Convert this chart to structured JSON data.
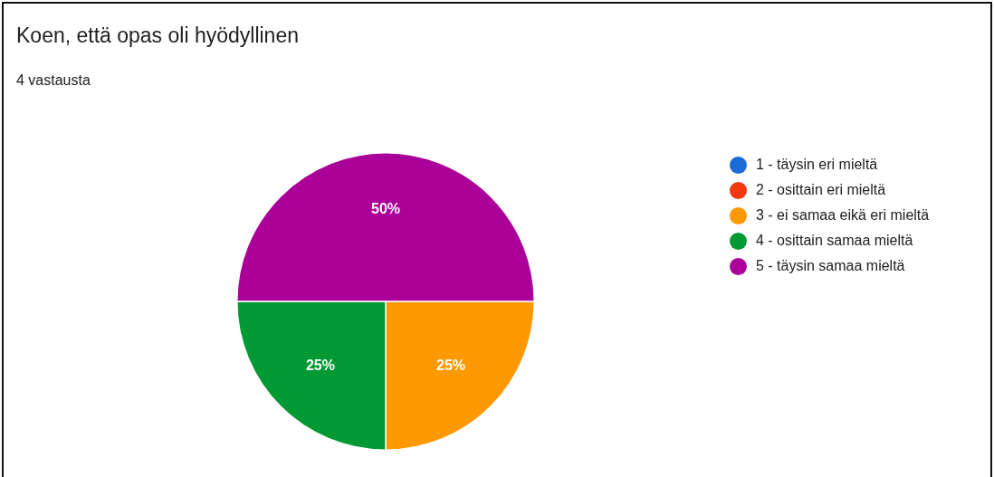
{
  "chart_data": {
    "type": "pie",
    "title": "Koen, että opas oli hyödyllinen",
    "subtitle": "4 vastausta",
    "categories": [
      "1 - täysin eri mieltä",
      "2 - osittain eri mieltä",
      "3 - ei samaa eikä eri mieltä",
      "4 - osittain samaa mieltä",
      "5 - täysin samaa mieltä"
    ],
    "values": [
      0,
      0,
      25,
      25,
      50
    ],
    "colors": [
      "#1a6ad8",
      "#f2390d",
      "#ff9900",
      "#009933",
      "#aa0099"
    ],
    "value_labels": [
      null,
      null,
      "25%",
      "25%",
      "50%"
    ],
    "legend": "right"
  }
}
